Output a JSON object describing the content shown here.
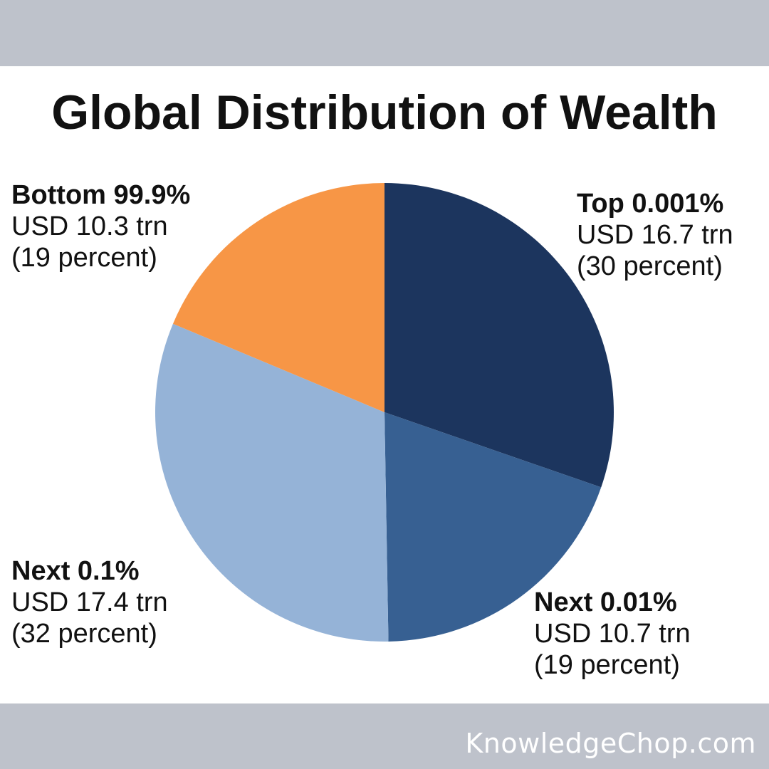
{
  "chart_data": {
    "type": "pie",
    "title": "Global Distribution of Wealth",
    "unit": "USD trn",
    "slices": [
      {
        "name": "Top 0.001%",
        "value": 16.7,
        "amount_label": "USD 16.7 trn",
        "percent_label": "(30 percent)",
        "color": "#1c355e"
      },
      {
        "name": "Next 0.01%",
        "value": 10.7,
        "amount_label": "USD 10.7 trn",
        "percent_label": "(19 percent)",
        "color": "#376092"
      },
      {
        "name": "Next 0.1%",
        "value": 17.4,
        "amount_label": "USD 17.4 trn",
        "percent_label": "(32 percent)",
        "color": "#95b3d7"
      },
      {
        "name": "Bottom 99.9%",
        "value": 10.3,
        "amount_label": "USD 10.3 trn",
        "percent_label": "(19 percent)",
        "color": "#f79646"
      }
    ],
    "start_angle": "12 o'clock",
    "direction": "clockwise",
    "legend": "none"
  },
  "footer": {
    "watermark": "KnowledgeChop.com"
  },
  "colors": {
    "band": "#bec2cb",
    "background": "#ffffff"
  }
}
